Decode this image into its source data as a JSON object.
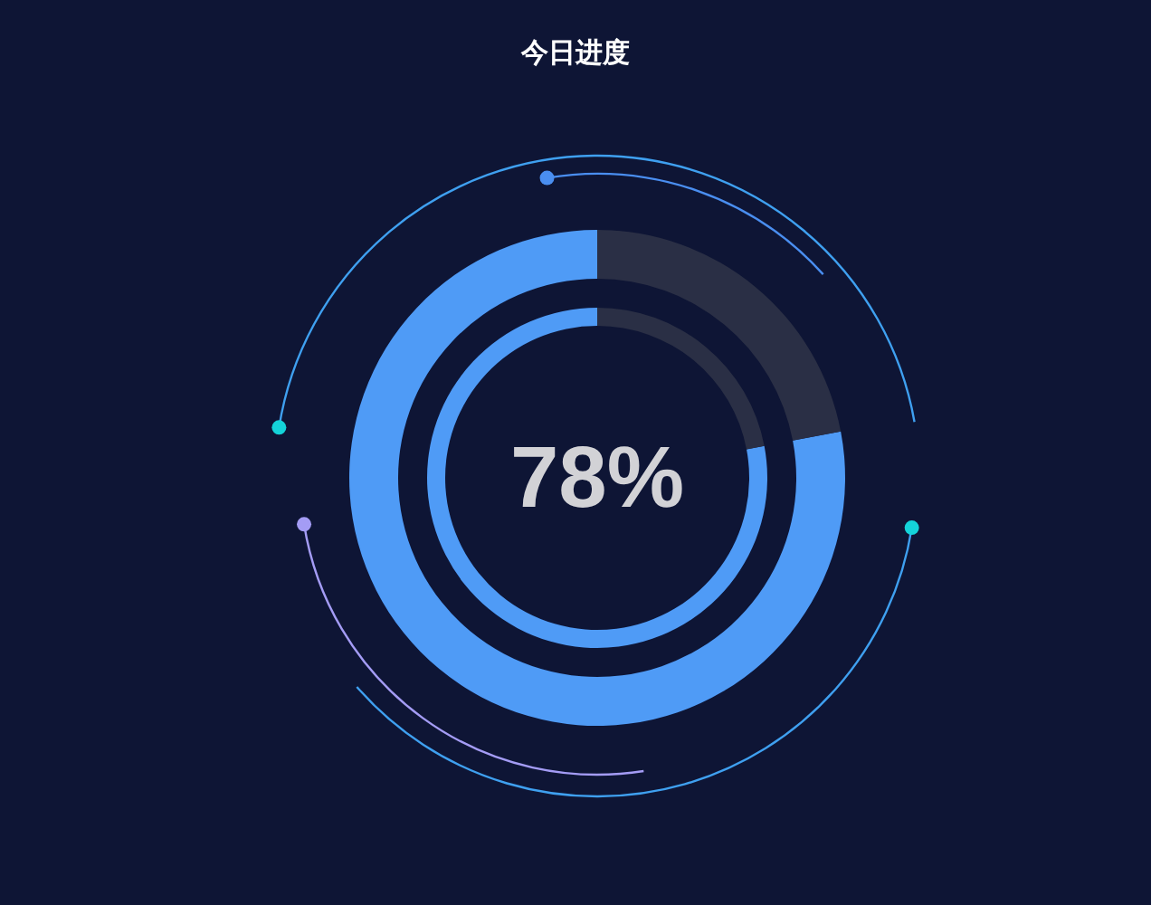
{
  "chart_data": [
    {
      "type": "donut",
      "title": "今日进度",
      "categories": [
        null,
        null
      ],
      "values": [
        78,
        22
      ],
      "colors": [
        "#4f9bf6",
        "#2a2f45"
      ],
      "value_labels": [
        "78%",
        null
      ]
    },
    {
      "type": "donut",
      "categories": [
        null,
        null
      ],
      "values": [
        78,
        22
      ],
      "colors": [
        "#4f9bf6",
        "#2a2f45"
      ]
    }
  ]
}
